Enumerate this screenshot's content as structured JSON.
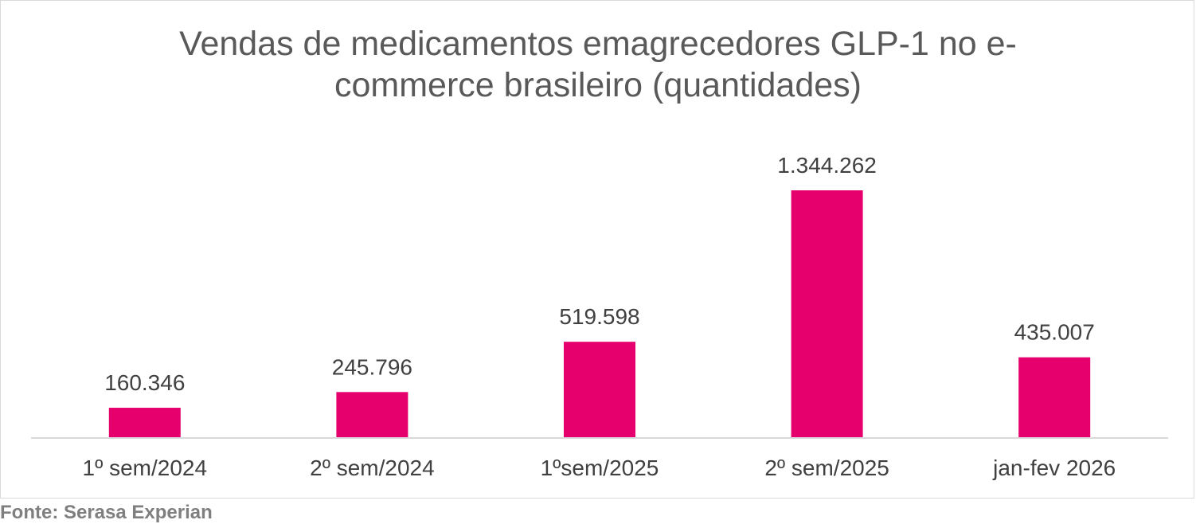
{
  "chart_data": {
    "type": "bar",
    "title": "Vendas de medicamentos emagrecedores GLP-1 no e-commerce brasileiro (quantidades)",
    "categories": [
      "1º sem/2024",
      "2º sem/2024",
      "1ºsem/2025",
      "2º sem/2025",
      "jan-fev 2026"
    ],
    "values": [
      160346,
      245796,
      519598,
      1344262,
      435007
    ],
    "data_labels": [
      "160.346",
      "245.796",
      "519.598",
      "1.344.262",
      "435.007"
    ],
    "ylim": [
      0,
      1344262
    ],
    "grid": false,
    "legend": "none",
    "bar_color": "#e5006e"
  },
  "source": "Fonte: Serasa Experian"
}
